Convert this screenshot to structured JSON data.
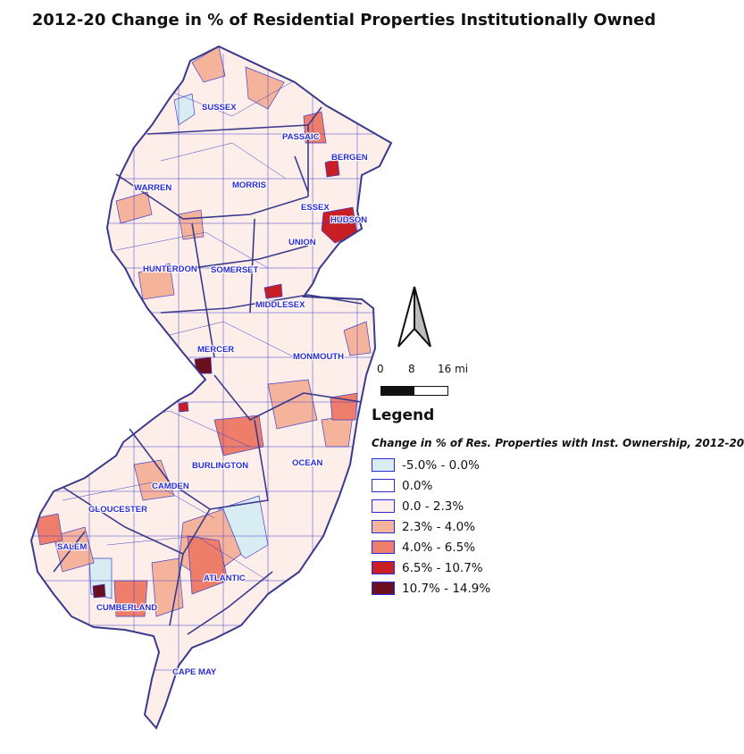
{
  "title": "2012-20 Change in % of Residential Properties Institutionally Owned",
  "counties": [
    {
      "name": "SUSSEX"
    },
    {
      "name": "PASSAIC"
    },
    {
      "name": "BERGEN"
    },
    {
      "name": "WARREN"
    },
    {
      "name": "MORRIS"
    },
    {
      "name": "ESSEX"
    },
    {
      "name": "HUDSON"
    },
    {
      "name": "UNION"
    },
    {
      "name": "HUNTERDON"
    },
    {
      "name": "SOMERSET"
    },
    {
      "name": "MIDDLESEX"
    },
    {
      "name": "MERCER"
    },
    {
      "name": "MONMOUTH"
    },
    {
      "name": "BURLINGTON"
    },
    {
      "name": "OCEAN"
    },
    {
      "name": "CAMDEN"
    },
    {
      "name": "GLOUCESTER"
    },
    {
      "name": "SALEM"
    },
    {
      "name": "ATLANTIC"
    },
    {
      "name": "CUMBERLAND"
    },
    {
      "name": "CAPE MAY"
    }
  ],
  "legend": {
    "title": "Legend",
    "subtitle": "Change in % of Res. Properties with Inst. Ownership, 2012-20",
    "items": [
      {
        "label": "-5.0% - 0.0%",
        "color": "#d8ecf3"
      },
      {
        "label": "0.0%",
        "color": "#ffffff"
      },
      {
        "label": "0.0 - 2.3%",
        "color": "#fdeeea"
      },
      {
        "label": "2.3% - 4.0%",
        "color": "#f6b39c"
      },
      {
        "label": "4.0% - 6.5%",
        "color": "#ee7d6a"
      },
      {
        "label": "6.5% - 10.7%",
        "color": "#c81e24"
      },
      {
        "label": "10.7% - 14.9%",
        "color": "#6b0f1e"
      }
    ]
  },
  "scale": {
    "ticks": [
      "0",
      "8",
      "16 mi"
    ]
  },
  "colors": {
    "boundary": "#3a3a8c",
    "muni_line": "#4040c8",
    "label": "#2b2bd6"
  }
}
